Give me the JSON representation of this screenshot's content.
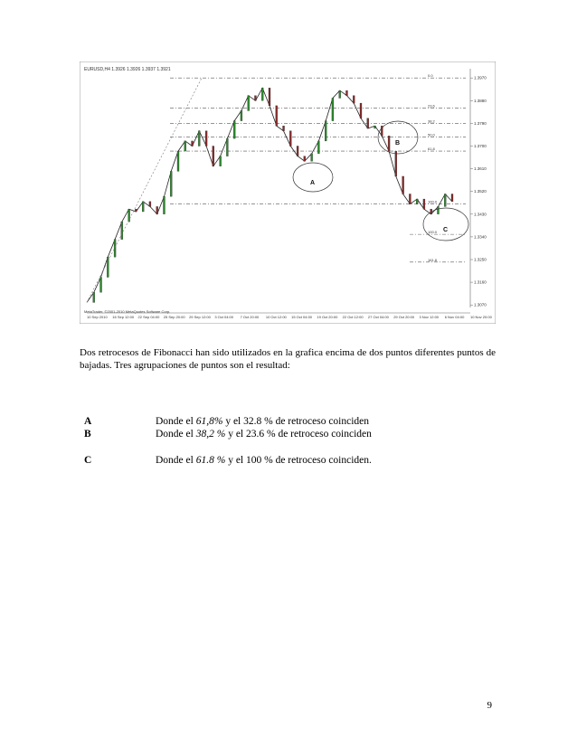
{
  "chart_data": {
    "type": "line",
    "title": "EURUSD,H4 1.3926 1.3926 1.3937 1.3921",
    "copyright": "MetaTrader, ©2001-2010 MetaQuotes Software Corp.",
    "x_ticks": [
      "10 Sep 2010",
      "16 Sep 12:00",
      "22 Sep 04:00",
      "25 Sep 20:00",
      "29 Sep 12:00",
      "3 Oct 04:00",
      "7 Oct 20:00",
      "10 Oct 12:00",
      "15 Oct 04:00",
      "19 Oct 20:00",
      "22 Oct 12:00",
      "27 Oct 04:00",
      "29 Oct 20:00",
      "3 Nov 12:00",
      "6 Nov 04:00",
      "10 Nov 20:00"
    ],
    "y_ticks": [
      "1.3970",
      "1.3880",
      "1.3790",
      "1.3700",
      "1.3610",
      "1.3520",
      "1.3430",
      "1.3340",
      "1.3250",
      "1.3160",
      "1.3070"
    ],
    "fib_levels": [
      "0.0",
      "23.6",
      "38.2",
      "50.0",
      "61.8",
      "100.0",
      "100.0",
      "161.8"
    ],
    "circles": [
      "A",
      "B",
      "C"
    ],
    "series_values": [
      1.308,
      1.312,
      1.318,
      1.326,
      1.333,
      1.34,
      1.345,
      1.344,
      1.348,
      1.346,
      1.343,
      1.35,
      1.36,
      1.368,
      1.372,
      1.37,
      1.376,
      1.37,
      1.362,
      1.366,
      1.373,
      1.38,
      1.384,
      1.39,
      1.388,
      1.393,
      1.386,
      1.378,
      1.376,
      1.37,
      1.366,
      1.364,
      1.367,
      1.372,
      1.38,
      1.389,
      1.392,
      1.39,
      1.387,
      1.381,
      1.377,
      1.378,
      1.374,
      1.368,
      1.358,
      1.351,
      1.347,
      1.349,
      1.345,
      1.343,
      1.346,
      1.351,
      1.348
    ]
  },
  "paragraph": "Dos retrocesos de Fibonacci han sido utilizados en la grafica encima de dos puntos diferentes puntos de bajadas. Tres agrupaciones de puntos son el resultad:",
  "rows": [
    {
      "label": "A",
      "pre": "Donde el",
      "v1": "61,8%",
      "mid": "y el  32.8 %  de retroceso coinciden"
    },
    {
      "label": "B",
      "pre": "Donde el",
      "v1": "38,2 %",
      "mid": "y el  23.6 %  de retroceso coinciden"
    },
    {
      "label": "C",
      "pre": "Donde el",
      "v1": "61.8 %",
      "mid": "y el  100 %  de retroceso coinciden."
    }
  ],
  "page_number": "9"
}
